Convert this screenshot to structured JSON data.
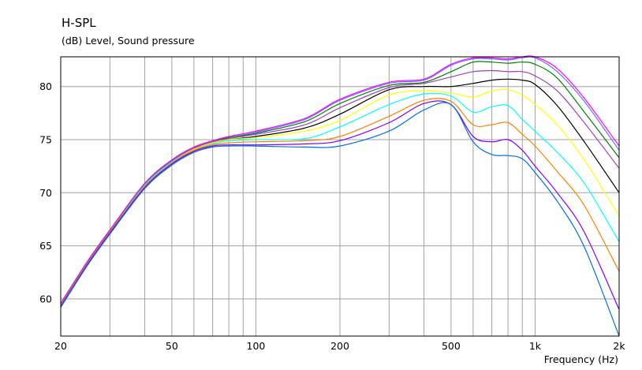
{
  "chart_data": {
    "type": "line",
    "title": "H-SPL",
    "subtitle": "(dB)  Level, Sound pressure",
    "xlabel": "Frequency  (Hz)",
    "ylabel": "",
    "x_scale": "log",
    "xlim": [
      20,
      2000
    ],
    "ylim": [
      56.5,
      82.8
    ],
    "x_ticks": [
      {
        "value": 20,
        "label": "20"
      },
      {
        "value": 50,
        "label": "50"
      },
      {
        "value": 100,
        "label": "100"
      },
      {
        "value": 200,
        "label": "200"
      },
      {
        "value": 500,
        "label": "500"
      },
      {
        "value": 1000,
        "label": "1k"
      },
      {
        "value": 2000,
        "label": "2k"
      }
    ],
    "y_ticks": [
      {
        "value": 60,
        "label": "60"
      },
      {
        "value": 65,
        "label": "65"
      },
      {
        "value": 70,
        "label": "70"
      },
      {
        "value": 75,
        "label": "75"
      },
      {
        "value": 80,
        "label": "80"
      }
    ],
    "x_gridlines": [
      20,
      30,
      40,
      50,
      60,
      70,
      80,
      90,
      100,
      200,
      300,
      400,
      500,
      600,
      700,
      800,
      900,
      1000,
      2000
    ],
    "y_gridlines": [
      60,
      65,
      70,
      75,
      80
    ],
    "grid": true,
    "legend": "none",
    "x": [
      20,
      25,
      30,
      40,
      50,
      60,
      70,
      80,
      100,
      150,
      200,
      300,
      400,
      500,
      600,
      700,
      800,
      900,
      1000,
      1200,
      1500,
      2000
    ],
    "series": [
      {
        "color": "#ff00ff",
        "values": [
          59.6,
          63.6,
          66.5,
          70.9,
          73.1,
          74.3,
          74.9,
          75.3,
          75.8,
          77.0,
          78.8,
          80.4,
          80.7,
          82.1,
          82.7,
          82.7,
          82.6,
          82.8,
          82.8,
          81.7,
          78.9,
          74.4
        ]
      },
      {
        "color": "#7070ff",
        "values": [
          59.5,
          63.5,
          66.4,
          70.8,
          73.0,
          74.2,
          74.8,
          75.2,
          75.7,
          76.9,
          78.7,
          80.3,
          80.6,
          82.0,
          82.6,
          82.6,
          82.5,
          82.7,
          82.7,
          81.4,
          78.6,
          74.0
        ]
      },
      {
        "color": "#008000",
        "values": [
          59.5,
          63.5,
          66.4,
          70.8,
          73.0,
          74.2,
          74.8,
          75.2,
          75.6,
          76.7,
          78.4,
          80.1,
          80.4,
          81.4,
          82.3,
          82.3,
          82.2,
          82.3,
          82.1,
          80.8,
          77.6,
          73.3
        ]
      },
      {
        "color": "#a040c0",
        "values": [
          59.5,
          63.5,
          66.4,
          70.8,
          73.0,
          74.2,
          74.8,
          75.1,
          75.5,
          76.4,
          78.0,
          79.9,
          80.3,
          80.9,
          81.4,
          81.5,
          81.4,
          81.4,
          81.0,
          79.6,
          76.6,
          72.3
        ]
      },
      {
        "color": "#000000",
        "values": [
          59.4,
          63.4,
          66.3,
          70.7,
          72.9,
          74.1,
          74.7,
          75.0,
          75.3,
          76.1,
          77.4,
          79.7,
          80.0,
          80.0,
          80.3,
          80.6,
          80.7,
          80.6,
          80.2,
          78.2,
          74.8,
          70.0
        ]
      },
      {
        "color": "#ffff00",
        "values": [
          59.4,
          63.4,
          66.3,
          70.7,
          72.9,
          74.1,
          74.7,
          75.0,
          75.2,
          75.8,
          76.8,
          79.2,
          79.6,
          79.4,
          79.0,
          79.6,
          79.7,
          79.2,
          78.3,
          76.4,
          73.1,
          67.8
        ]
      },
      {
        "color": "#00ffff",
        "values": [
          59.4,
          63.4,
          66.3,
          70.7,
          72.9,
          74.0,
          74.6,
          74.9,
          75.0,
          75.1,
          76.2,
          78.3,
          79.3,
          79.1,
          77.6,
          78.1,
          78.2,
          76.9,
          75.8,
          73.8,
          70.9,
          65.4
        ]
      },
      {
        "color": "#ff8000",
        "values": [
          59.4,
          63.4,
          66.3,
          70.6,
          72.8,
          74.0,
          74.5,
          74.7,
          74.8,
          74.9,
          75.3,
          77.2,
          78.7,
          78.6,
          76.4,
          76.4,
          76.6,
          75.5,
          74.4,
          72.0,
          68.8,
          62.6
        ]
      },
      {
        "color": "#8000ff",
        "values": [
          59.3,
          63.3,
          66.2,
          70.5,
          72.7,
          73.9,
          74.4,
          74.5,
          74.5,
          74.6,
          74.9,
          76.6,
          78.4,
          78.3,
          75.3,
          74.8,
          75.0,
          74.0,
          72.5,
          70.0,
          66.3,
          59.0
        ]
      },
      {
        "color": "#0070e0",
        "values": [
          59.2,
          63.2,
          66.1,
          70.4,
          72.6,
          73.8,
          74.3,
          74.4,
          74.4,
          74.3,
          74.4,
          75.8,
          77.8,
          78.3,
          74.8,
          73.6,
          73.5,
          73.2,
          71.9,
          69.2,
          64.9,
          56.5
        ]
      }
    ]
  }
}
